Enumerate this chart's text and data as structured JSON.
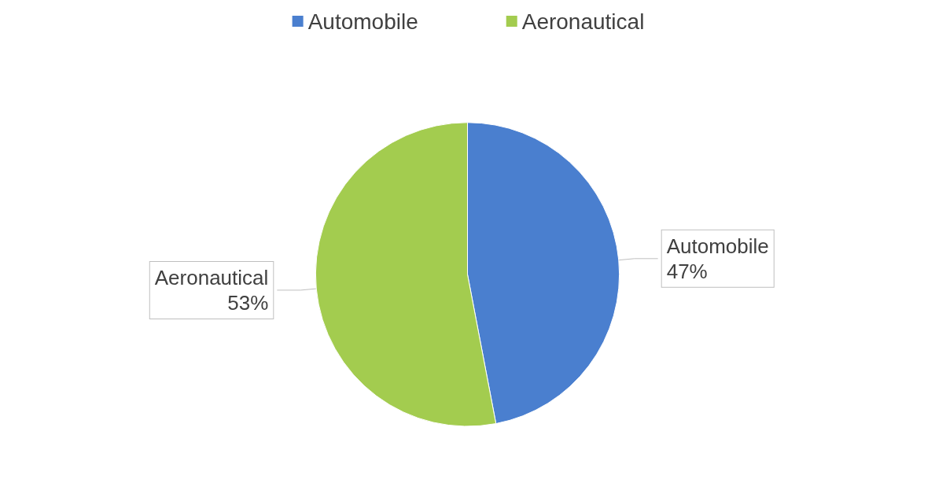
{
  "chart_data": {
    "type": "pie",
    "categories": [
      "Automobile",
      "Aeronautical"
    ],
    "values": [
      47,
      53
    ],
    "value_labels": [
      "47%",
      "53%"
    ],
    "colors": [
      "#4a7fcf",
      "#a3cc4f"
    ],
    "legend": "top"
  }
}
